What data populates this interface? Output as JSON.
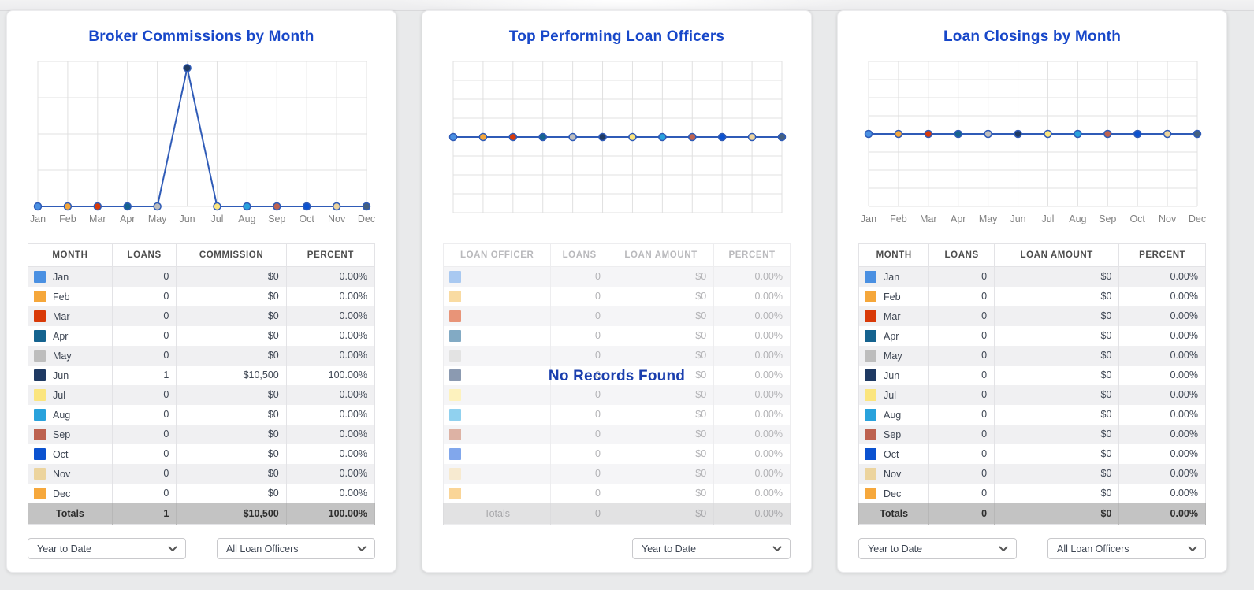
{
  "colors": {
    "title_blue": "#1747c9",
    "line_blue": "#2f5bb7",
    "grid_gray": "#e0e0e0",
    "axis_label_gray": "#808080",
    "totals_bg": "#c3c3c3",
    "no_records_blue": "#1b3fae"
  },
  "point_palette": [
    "#4a90e2",
    "#f5a73b",
    "#d93a08",
    "#15638f",
    "#bdbdbd",
    "#1f3a63",
    "#fbe57e",
    "#29a2dc",
    "#bd6250",
    "#0b52d0",
    "#ecd49e",
    "#44607f"
  ],
  "chart_data": [
    {
      "type": "line",
      "title": "Broker Commissions by Month",
      "categories": [
        "Jan",
        "Feb",
        "Mar",
        "Apr",
        "May",
        "Jun",
        "Jul",
        "Aug",
        "Sep",
        "Oct",
        "Nov",
        "Dec"
      ],
      "series": [
        {
          "name": "Commission",
          "values": [
            0,
            0,
            0,
            0,
            0,
            10500,
            0,
            0,
            0,
            0,
            0,
            0
          ]
        }
      ],
      "ylim": [
        0,
        11000
      ],
      "grid": "on",
      "grid_rows": 4,
      "show_x_labels": true,
      "baseline": "bottom",
      "legend": "none"
    },
    {
      "type": "line",
      "title": "Top Performing Loan Officers",
      "categories": [
        "",
        "",
        "",
        "",
        "",
        "",
        "",
        "",
        "",
        "",
        "",
        ""
      ],
      "series": [
        {
          "name": "",
          "values": [
            0,
            0,
            0,
            0,
            0,
            0,
            0,
            0,
            0,
            0,
            0,
            0
          ]
        }
      ],
      "grid": "on",
      "grid_rows": 8,
      "show_x_labels": false,
      "baseline": "middle",
      "legend": "none"
    },
    {
      "type": "line",
      "title": "Loan Closings by Month",
      "categories": [
        "Jan",
        "Feb",
        "Mar",
        "Apr",
        "May",
        "Jun",
        "Jul",
        "Aug",
        "Sep",
        "Oct",
        "Nov",
        "Dec"
      ],
      "series": [
        {
          "name": "Loan Amount",
          "values": [
            0,
            0,
            0,
            0,
            0,
            0,
            0,
            0,
            0,
            0,
            0,
            0
          ]
        }
      ],
      "grid": "on",
      "grid_rows": 8,
      "show_x_labels": true,
      "baseline": "middle",
      "legend": "none"
    }
  ],
  "panels": [
    {
      "title": "Broker Commissions by Month",
      "faded": false,
      "overlay": "",
      "table": {
        "columns": [
          "MONTH",
          "LOANS",
          "COMMISSION",
          "PERCENT"
        ],
        "rows": [
          {
            "swatch": "#4a90e2",
            "label": "Jan",
            "values": [
              "0",
              "$0",
              "0.00%"
            ]
          },
          {
            "swatch": "#f5a73b",
            "label": "Feb",
            "values": [
              "0",
              "$0",
              "0.00%"
            ]
          },
          {
            "swatch": "#d93a08",
            "label": "Mar",
            "values": [
              "0",
              "$0",
              "0.00%"
            ]
          },
          {
            "swatch": "#15638f",
            "label": "Apr",
            "values": [
              "0",
              "$0",
              "0.00%"
            ]
          },
          {
            "swatch": "#bdbdbd",
            "label": "May",
            "values": [
              "0",
              "$0",
              "0.00%"
            ]
          },
          {
            "swatch": "#1f3a63",
            "label": "Jun",
            "values": [
              "1",
              "$10,500",
              "100.00%"
            ]
          },
          {
            "swatch": "#fbe57e",
            "label": "Jul",
            "values": [
              "0",
              "$0",
              "0.00%"
            ]
          },
          {
            "swatch": "#29a2dc",
            "label": "Aug",
            "values": [
              "0",
              "$0",
              "0.00%"
            ]
          },
          {
            "swatch": "#bd6250",
            "label": "Sep",
            "values": [
              "0",
              "$0",
              "0.00%"
            ]
          },
          {
            "swatch": "#0b52d0",
            "label": "Oct",
            "values": [
              "0",
              "$0",
              "0.00%"
            ]
          },
          {
            "swatch": "#ecd49e",
            "label": "Nov",
            "values": [
              "0",
              "$0",
              "0.00%"
            ]
          },
          {
            "swatch": "#f6a83c",
            "label": "Dec",
            "values": [
              "0",
              "$0",
              "0.00%"
            ]
          }
        ],
        "totals": {
          "label": "Totals",
          "values": [
            "1",
            "$10,500",
            "100.00%"
          ]
        }
      },
      "footer": {
        "dropdowns": [
          {
            "label": "Year to Date"
          },
          {
            "label": "All Loan Officers"
          }
        ]
      }
    },
    {
      "title": "Top Performing Loan Officers",
      "faded": true,
      "overlay": "No Records Found",
      "table": {
        "columns": [
          "LOAN OFFICER",
          "LOANS",
          "LOAN AMOUNT",
          "PERCENT"
        ],
        "rows": [
          {
            "swatch": "#a9c9f1",
            "label": "",
            "values": [
              "0",
              "$0",
              "0.00%"
            ]
          },
          {
            "swatch": "#f9dba2",
            "label": "",
            "values": [
              "0",
              "$0",
              "0.00%"
            ]
          },
          {
            "swatch": "#e89478",
            "label": "",
            "values": [
              "0",
              "$0",
              "0.00%"
            ]
          },
          {
            "swatch": "#82aac4",
            "label": "",
            "values": [
              "0",
              "$0",
              "0.00%"
            ]
          },
          {
            "swatch": "#e3e3e3",
            "label": "",
            "values": [
              "0",
              "$0",
              "0.00%"
            ]
          },
          {
            "swatch": "#8b9ab1",
            "label": "",
            "values": [
              "0",
              "$0",
              "0.00%"
            ]
          },
          {
            "swatch": "#fdf2be",
            "label": "",
            "values": [
              "0",
              "$0",
              "0.00%"
            ]
          },
          {
            "swatch": "#90d1ef",
            "label": "",
            "values": [
              "0",
              "$0",
              "0.00%"
            ]
          },
          {
            "swatch": "#ddb2a4",
            "label": "",
            "values": [
              "0",
              "$0",
              "0.00%"
            ]
          },
          {
            "swatch": "#81a7ec",
            "label": "",
            "values": [
              "0",
              "$0",
              "0.00%"
            ]
          },
          {
            "swatch": "#f7ead0",
            "label": "",
            "values": [
              "0",
              "$0",
              "0.00%"
            ]
          },
          {
            "swatch": "#fad597",
            "label": "",
            "values": [
              "0",
              "$0",
              "0.00%"
            ]
          }
        ],
        "totals": {
          "label": "Totals",
          "values": [
            "0",
            "$0",
            "0.00%"
          ]
        }
      },
      "footer": {
        "dropdowns": [
          {
            "label": "Year to Date"
          }
        ]
      }
    },
    {
      "title": "Loan Closings by Month",
      "faded": false,
      "overlay": "",
      "table": {
        "columns": [
          "MONTH",
          "LOANS",
          "LOAN AMOUNT",
          "PERCENT"
        ],
        "rows": [
          {
            "swatch": "#4a90e2",
            "label": "Jan",
            "values": [
              "0",
              "$0",
              "0.00%"
            ]
          },
          {
            "swatch": "#f5a73b",
            "label": "Feb",
            "values": [
              "0",
              "$0",
              "0.00%"
            ]
          },
          {
            "swatch": "#d93a08",
            "label": "Mar",
            "values": [
              "0",
              "$0",
              "0.00%"
            ]
          },
          {
            "swatch": "#15638f",
            "label": "Apr",
            "values": [
              "0",
              "$0",
              "0.00%"
            ]
          },
          {
            "swatch": "#bdbdbd",
            "label": "May",
            "values": [
              "0",
              "$0",
              "0.00%"
            ]
          },
          {
            "swatch": "#1f3a63",
            "label": "Jun",
            "values": [
              "0",
              "$0",
              "0.00%"
            ]
          },
          {
            "swatch": "#fbe57e",
            "label": "Jul",
            "values": [
              "0",
              "$0",
              "0.00%"
            ]
          },
          {
            "swatch": "#29a2dc",
            "label": "Aug",
            "values": [
              "0",
              "$0",
              "0.00%"
            ]
          },
          {
            "swatch": "#bd6250",
            "label": "Sep",
            "values": [
              "0",
              "$0",
              "0.00%"
            ]
          },
          {
            "swatch": "#0b52d0",
            "label": "Oct",
            "values": [
              "0",
              "$0",
              "0.00%"
            ]
          },
          {
            "swatch": "#ecd49e",
            "label": "Nov",
            "values": [
              "0",
              "$0",
              "0.00%"
            ]
          },
          {
            "swatch": "#f6a83c",
            "label": "Dec",
            "values": [
              "0",
              "$0",
              "0.00%"
            ]
          }
        ],
        "totals": {
          "label": "Totals",
          "values": [
            "0",
            "$0",
            "0.00%"
          ]
        }
      },
      "footer": {
        "dropdowns": [
          {
            "label": "Year to Date"
          },
          {
            "label": "All Loan Officers"
          }
        ]
      }
    }
  ]
}
